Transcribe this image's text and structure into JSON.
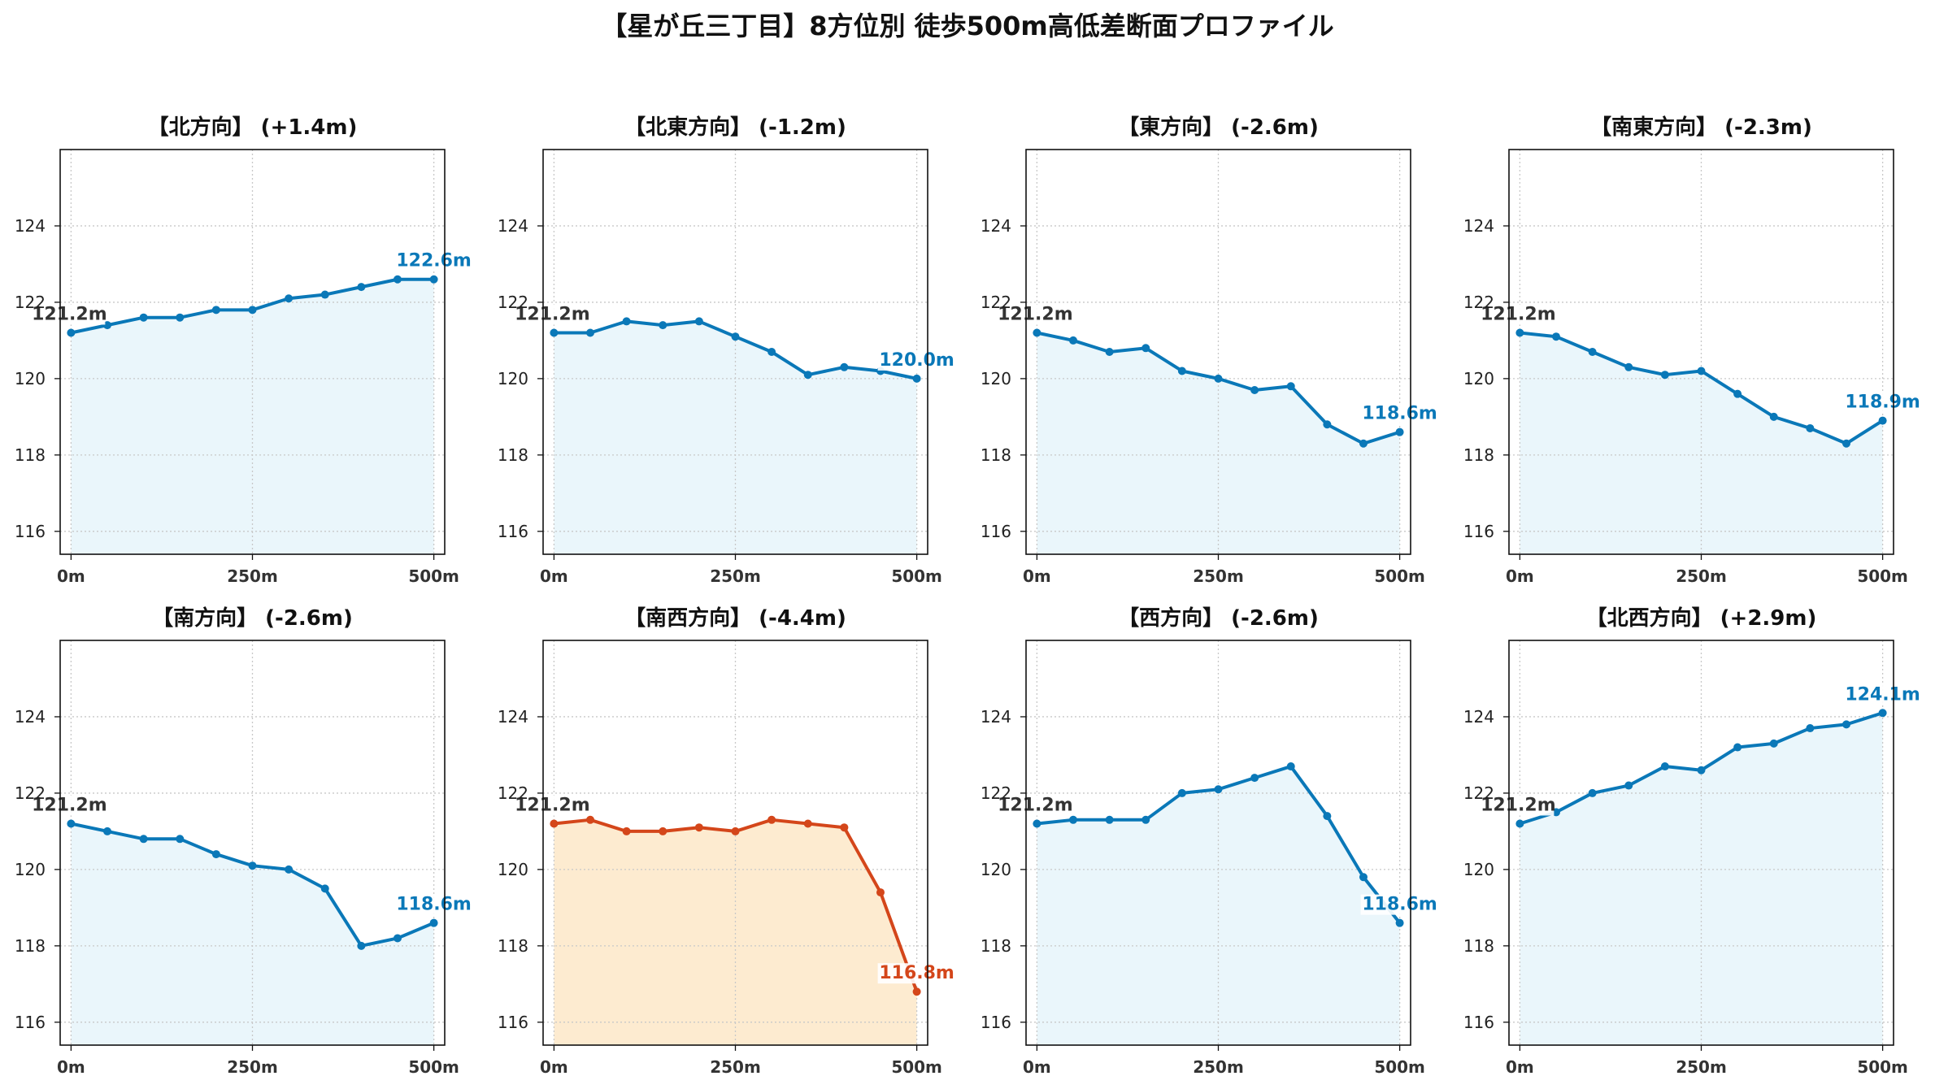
{
  "title": "【星が丘三丁目】8方位別 徒歩500m高低差断面プロファイル",
  "colors": {
    "line_default": "#0a78b8",
    "fill_default": "#eaf6fb",
    "line_highlight": "#d4461a",
    "fill_highlight": "#fdebd0",
    "start_label": "#333333",
    "grid": "#c8c8c8"
  },
  "chart_data": [
    {
      "type": "area",
      "title": "【北方向】 (+1.4m)",
      "x": [
        0,
        50,
        100,
        150,
        200,
        250,
        300,
        350,
        400,
        450,
        500
      ],
      "values": [
        121.2,
        121.4,
        121.6,
        121.6,
        121.8,
        121.8,
        122.1,
        122.2,
        122.4,
        122.6,
        122.6
      ],
      "start_label": "121.2m",
      "end_label": "122.6m",
      "highlight": false,
      "xticks": [
        "0m",
        "250m",
        "500m"
      ],
      "yticks": [
        "116",
        "118",
        "120",
        "122",
        "124"
      ],
      "xlim": [
        -15,
        515
      ],
      "ylim": [
        115.4,
        126.0
      ],
      "grid": true
    },
    {
      "type": "area",
      "title": "【北東方向】 (-1.2m)",
      "x": [
        0,
        50,
        100,
        150,
        200,
        250,
        300,
        350,
        400,
        450,
        500
      ],
      "values": [
        121.2,
        121.2,
        121.5,
        121.4,
        121.5,
        121.1,
        120.7,
        120.1,
        120.3,
        120.2,
        120.0
      ],
      "start_label": "121.2m",
      "end_label": "120.0m",
      "highlight": false,
      "xticks": [
        "0m",
        "250m",
        "500m"
      ],
      "yticks": [
        "116",
        "118",
        "120",
        "122",
        "124"
      ],
      "xlim": [
        -15,
        515
      ],
      "ylim": [
        115.4,
        126.0
      ],
      "grid": true
    },
    {
      "type": "area",
      "title": "【東方向】 (-2.6m)",
      "x": [
        0,
        50,
        100,
        150,
        200,
        250,
        300,
        350,
        400,
        450,
        500
      ],
      "values": [
        121.2,
        121.0,
        120.7,
        120.8,
        120.2,
        120.0,
        119.7,
        119.8,
        118.8,
        118.3,
        118.6
      ],
      "start_label": "121.2m",
      "end_label": "118.6m",
      "highlight": false,
      "xticks": [
        "0m",
        "250m",
        "500m"
      ],
      "yticks": [
        "116",
        "118",
        "120",
        "122",
        "124"
      ],
      "xlim": [
        -15,
        515
      ],
      "ylim": [
        115.4,
        126.0
      ],
      "grid": true
    },
    {
      "type": "area",
      "title": "【南東方向】 (-2.3m)",
      "x": [
        0,
        50,
        100,
        150,
        200,
        250,
        300,
        350,
        400,
        450,
        500
      ],
      "values": [
        121.2,
        121.1,
        120.7,
        120.3,
        120.1,
        120.2,
        119.6,
        119.0,
        118.7,
        118.3,
        118.9
      ],
      "start_label": "121.2m",
      "end_label": "118.9m",
      "highlight": false,
      "xticks": [
        "0m",
        "250m",
        "500m"
      ],
      "yticks": [
        "116",
        "118",
        "120",
        "122",
        "124"
      ],
      "xlim": [
        -15,
        515
      ],
      "ylim": [
        115.4,
        126.0
      ],
      "grid": true
    },
    {
      "type": "area",
      "title": "【南方向】 (-2.6m)",
      "x": [
        0,
        50,
        100,
        150,
        200,
        250,
        300,
        350,
        400,
        450,
        500
      ],
      "values": [
        121.2,
        121.0,
        120.8,
        120.8,
        120.4,
        120.1,
        120.0,
        119.5,
        118.0,
        118.2,
        118.6
      ],
      "start_label": "121.2m",
      "end_label": "118.6m",
      "highlight": false,
      "xticks": [
        "0m",
        "250m",
        "500m"
      ],
      "yticks": [
        "116",
        "118",
        "120",
        "122",
        "124"
      ],
      "xlim": [
        -15,
        515
      ],
      "ylim": [
        115.4,
        126.0
      ],
      "grid": true
    },
    {
      "type": "area",
      "title": "【南西方向】 (-4.4m)",
      "x": [
        0,
        50,
        100,
        150,
        200,
        250,
        300,
        350,
        400,
        450,
        500
      ],
      "values": [
        121.2,
        121.3,
        121.0,
        121.0,
        121.1,
        121.0,
        121.3,
        121.2,
        121.1,
        119.4,
        116.8
      ],
      "start_label": "121.2m",
      "end_label": "116.8m",
      "highlight": true,
      "xticks": [
        "0m",
        "250m",
        "500m"
      ],
      "yticks": [
        "116",
        "118",
        "120",
        "122",
        "124"
      ],
      "xlim": [
        -15,
        515
      ],
      "ylim": [
        115.4,
        126.0
      ],
      "grid": true
    },
    {
      "type": "area",
      "title": "【西方向】 (-2.6m)",
      "x": [
        0,
        50,
        100,
        150,
        200,
        250,
        300,
        350,
        400,
        450,
        500
      ],
      "values": [
        121.2,
        121.3,
        121.3,
        121.3,
        122.0,
        122.1,
        122.4,
        122.7,
        121.4,
        119.8,
        118.6
      ],
      "start_label": "121.2m",
      "end_label": "118.6m",
      "highlight": false,
      "xticks": [
        "0m",
        "250m",
        "500m"
      ],
      "yticks": [
        "116",
        "118",
        "120",
        "122",
        "124"
      ],
      "xlim": [
        -15,
        515
      ],
      "ylim": [
        115.4,
        126.0
      ],
      "grid": true
    },
    {
      "type": "area",
      "title": "【北西方向】 (+2.9m)",
      "x": [
        0,
        50,
        100,
        150,
        200,
        250,
        300,
        350,
        400,
        450,
        500
      ],
      "values": [
        121.2,
        121.5,
        122.0,
        122.2,
        122.7,
        122.6,
        123.2,
        123.3,
        123.7,
        123.8,
        124.1
      ],
      "start_label": "121.2m",
      "end_label": "124.1m",
      "highlight": false,
      "xticks": [
        "0m",
        "250m",
        "500m"
      ],
      "yticks": [
        "116",
        "118",
        "120",
        "122",
        "124"
      ],
      "xlim": [
        -15,
        515
      ],
      "ylim": [
        115.4,
        126.0
      ],
      "grid": true
    }
  ]
}
